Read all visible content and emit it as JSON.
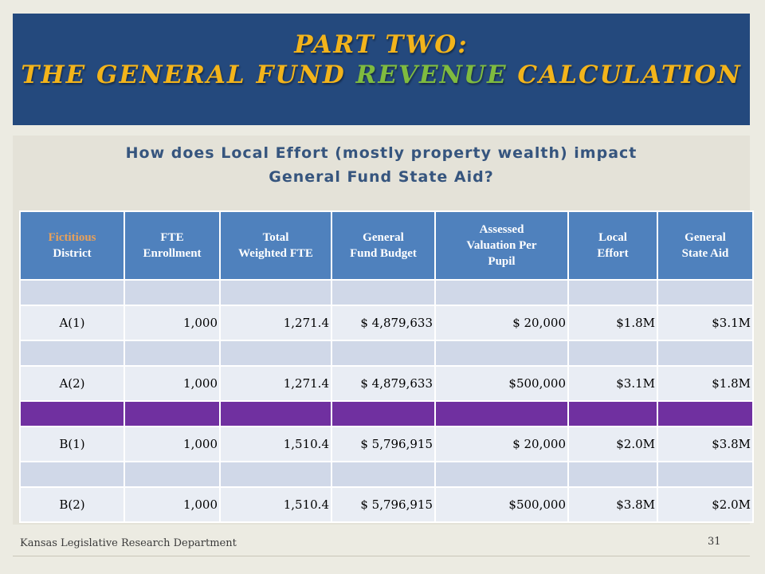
{
  "title": {
    "line1": "PART TWO:",
    "line2_part1": "THE GENERAL FUND ",
    "line2_highlight": "REVENUE",
    "line2_part2": " CALCULATION"
  },
  "subtitle": {
    "line1": "How does Local Effort (mostly property wealth) impact",
    "line2": "General Fund State Aid?"
  },
  "table": {
    "headers": [
      {
        "line1": "Fictitious",
        "line2": "District",
        "line3": ""
      },
      {
        "line1": "FTE",
        "line2": "Enrollment",
        "line3": ""
      },
      {
        "line1": "Total",
        "line2": "Weighted FTE",
        "line3": ""
      },
      {
        "line1": "General",
        "line2": "Fund Budget",
        "line3": ""
      },
      {
        "line1": "Assessed",
        "line2": "Valuation Per",
        "line3": "Pupil"
      },
      {
        "line1": "Local",
        "line2": "Effort",
        "line3": ""
      },
      {
        "line1": "General",
        "line2": "State Aid",
        "line3": ""
      }
    ],
    "rows": [
      [
        "A(1)",
        "1,000",
        "1,271.4",
        "$ 4,879,633",
        "$ 20,000",
        "$1.8M",
        "$3.1M"
      ],
      [
        "A(2)",
        "1,000",
        "1,271.4",
        "$ 4,879,633",
        "$500,000",
        "$3.1M",
        "$1.8M"
      ],
      [
        "B(1)",
        "1,000",
        "1,510.4",
        "$ 5,796,915",
        "$ 20,000",
        "$2.0M",
        "$3.8M"
      ],
      [
        "B(2)",
        "1,000",
        "1,510.4",
        "$ 5,796,915",
        "$500,000",
        "$3.8M",
        "$2.0M"
      ]
    ]
  },
  "footer": {
    "org": "Kansas Legislative Research Department",
    "page": "31"
  },
  "colors": {
    "title_bg": "#24497d",
    "title_text": "#f3b41b",
    "title_highlight": "#7fbb3f",
    "header_bg": "#4f81bd",
    "spacer_row": "#d0d8e8",
    "divider_row": "#7030a0",
    "data_row": "#e9edf4"
  }
}
